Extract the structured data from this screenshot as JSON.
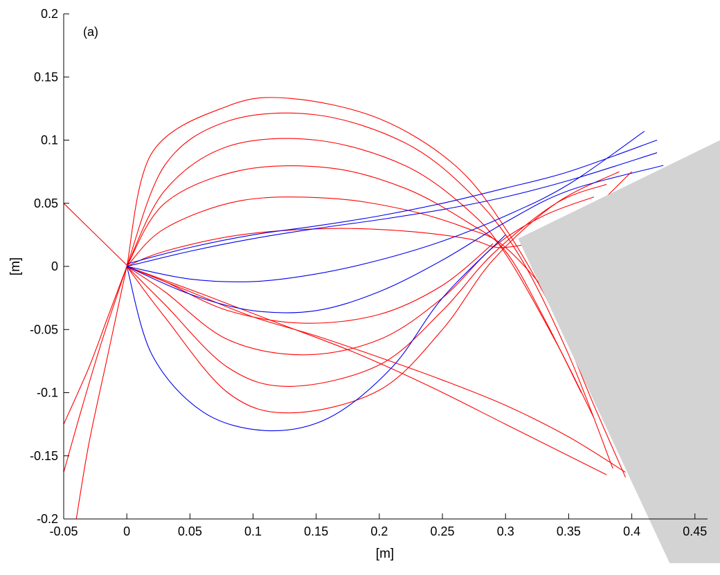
{
  "chart_data": {
    "type": "line",
    "panel_label": "(a)",
    "xlabel": "[m]",
    "ylabel": "[m]",
    "xlim": [
      -0.05,
      0.46
    ],
    "ylim": [
      -0.2,
      0.2
    ],
    "xticks": [
      -0.05,
      0,
      0.05,
      0.1,
      0.15,
      0.2,
      0.25,
      0.3,
      0.35,
      0.4,
      0.45
    ],
    "xtick_labels": [
      "-0.05",
      "0",
      "0.05",
      "0.1",
      "0.15",
      "0.2",
      "0.25",
      "0.3",
      "0.35",
      "0.4",
      "0.45"
    ],
    "yticks": [
      -0.2,
      -0.15,
      -0.1,
      -0.05,
      0,
      0.05,
      0.1,
      0.15,
      0.2
    ],
    "ytick_labels": [
      "-0.2",
      "-0.15",
      "-0.1",
      "-0.05",
      "0",
      "0.05",
      "0.1",
      "0.15",
      "0.2"
    ],
    "grid": false,
    "colors": {
      "red": "#ff0000",
      "blue": "#0000ee",
      "obstacle": "#d3d3d3"
    },
    "obstacle_polygon": [
      [
        0.31,
        0.022
      ],
      [
        0.47,
        0.1
      ],
      [
        0.47,
        -0.235
      ],
      [
        0.43,
        -0.235
      ]
    ],
    "series": [
      {
        "color": "red",
        "values": [
          [
            0,
            0
          ],
          [
            0.02,
            0.09
          ],
          [
            0.08,
            0.127
          ],
          [
            0.13,
            0.133
          ],
          [
            0.2,
            0.117
          ],
          [
            0.26,
            0.08
          ],
          [
            0.3,
            0.03
          ],
          [
            0.34,
            -0.04
          ],
          [
            0.37,
            -0.11
          ],
          [
            0.395,
            -0.167
          ]
        ]
      },
      {
        "color": "red",
        "values": [
          [
            0,
            0
          ],
          [
            0.03,
            0.08
          ],
          [
            0.08,
            0.115
          ],
          [
            0.15,
            0.12
          ],
          [
            0.22,
            0.098
          ],
          [
            0.27,
            0.06
          ],
          [
            0.31,
            0.01
          ],
          [
            0.35,
            -0.07
          ],
          [
            0.385,
            -0.16
          ]
        ]
      },
      {
        "color": "red",
        "values": [
          [
            0,
            0
          ],
          [
            0.03,
            0.06
          ],
          [
            0.08,
            0.095
          ],
          [
            0.15,
            0.1
          ],
          [
            0.22,
            0.08
          ],
          [
            0.27,
            0.045
          ],
          [
            0.3,
            0.01
          ],
          [
            0.34,
            -0.06
          ],
          [
            0.37,
            -0.12
          ]
        ]
      },
      {
        "color": "red",
        "values": [
          [
            0,
            0
          ],
          [
            0.03,
            0.05
          ],
          [
            0.09,
            0.076
          ],
          [
            0.16,
            0.078
          ],
          [
            0.22,
            0.062
          ],
          [
            0.27,
            0.035
          ],
          [
            0.3,
            0.012
          ],
          [
            0.33,
            -0.04
          ],
          [
            0.36,
            -0.1
          ]
        ]
      },
      {
        "color": "red",
        "values": [
          [
            0,
            0
          ],
          [
            0.03,
            0.03
          ],
          [
            0.09,
            0.052
          ],
          [
            0.16,
            0.054
          ],
          [
            0.22,
            0.045
          ],
          [
            0.27,
            0.03
          ],
          [
            0.3,
            0.015
          ],
          [
            0.34,
            -0.03
          ],
          [
            0.38,
            -0.09
          ]
        ]
      },
      {
        "color": "red",
        "values": [
          [
            0,
            0
          ],
          [
            0.03,
            0.012
          ],
          [
            0.09,
            0.025
          ],
          [
            0.16,
            0.03
          ],
          [
            0.22,
            0.028
          ],
          [
            0.27,
            0.022
          ],
          [
            0.3,
            0.015
          ],
          [
            0.35,
            0.03
          ],
          [
            0.4,
            0.075
          ]
        ]
      },
      {
        "color": "red",
        "values": [
          [
            0,
            0
          ],
          [
            0.03,
            -0.04
          ],
          [
            0.08,
            -0.1
          ],
          [
            0.13,
            -0.116
          ],
          [
            0.2,
            -0.098
          ],
          [
            0.25,
            -0.05
          ],
          [
            0.29,
            0.005
          ],
          [
            0.34,
            0.05
          ],
          [
            0.39,
            0.075
          ]
        ]
      },
      {
        "color": "red",
        "values": [
          [
            0,
            0
          ],
          [
            0.03,
            -0.03
          ],
          [
            0.08,
            -0.08
          ],
          [
            0.13,
            -0.095
          ],
          [
            0.2,
            -0.078
          ],
          [
            0.25,
            -0.035
          ],
          [
            0.29,
            0.01
          ],
          [
            0.34,
            0.05
          ],
          [
            0.38,
            0.065
          ]
        ]
      },
      {
        "color": "red",
        "values": [
          [
            0,
            0
          ],
          [
            0.03,
            -0.02
          ],
          [
            0.08,
            -0.058
          ],
          [
            0.14,
            -0.07
          ],
          [
            0.2,
            -0.058
          ],
          [
            0.25,
            -0.025
          ],
          [
            0.29,
            0.015
          ],
          [
            0.33,
            0.04
          ],
          [
            0.37,
            0.055
          ]
        ]
      },
      {
        "color": "red",
        "values": [
          [
            0,
            0
          ],
          [
            0.03,
            -0.012
          ],
          [
            0.08,
            -0.035
          ],
          [
            0.14,
            -0.045
          ],
          [
            0.2,
            -0.038
          ],
          [
            0.25,
            -0.015
          ],
          [
            0.29,
            0.018
          ]
        ]
      },
      {
        "color": "red",
        "values": [
          [
            0,
            0
          ],
          [
            0.05,
            -0.02
          ],
          [
            0.1,
            -0.04
          ],
          [
            0.15,
            -0.055
          ],
          [
            0.2,
            -0.072
          ],
          [
            0.25,
            -0.09
          ],
          [
            0.3,
            -0.11
          ],
          [
            0.35,
            -0.135
          ],
          [
            0.395,
            -0.163
          ]
        ]
      },
      {
        "color": "red",
        "values": [
          [
            0,
            0
          ],
          [
            0.06,
            -0.022
          ],
          [
            0.12,
            -0.045
          ],
          [
            0.18,
            -0.068
          ],
          [
            0.24,
            -0.095
          ],
          [
            0.3,
            -0.125
          ],
          [
            0.36,
            -0.155
          ],
          [
            0.38,
            -0.165
          ]
        ]
      },
      {
        "color": "red",
        "values": [
          [
            0,
            0
          ],
          [
            -0.015,
            -0.04
          ],
          [
            -0.03,
            -0.08
          ],
          [
            -0.05,
            -0.125
          ]
        ]
      },
      {
        "color": "red",
        "values": [
          [
            0,
            0
          ],
          [
            -0.02,
            -0.06
          ],
          [
            -0.035,
            -0.11
          ],
          [
            -0.05,
            -0.163
          ]
        ]
      },
      {
        "color": "red",
        "values": [
          [
            0,
            0
          ],
          [
            -0.015,
            -0.07
          ],
          [
            -0.03,
            -0.14
          ],
          [
            -0.04,
            -0.2
          ]
        ]
      },
      {
        "color": "red",
        "values": [
          [
            -0.05,
            0.05
          ],
          [
            0,
            0.001
          ]
        ]
      },
      {
        "color": "blue",
        "values": [
          [
            0,
            0
          ],
          [
            0.05,
            0.012
          ],
          [
            0.1,
            0.022
          ],
          [
            0.15,
            0.03
          ],
          [
            0.2,
            0.037
          ],
          [
            0.25,
            0.045
          ],
          [
            0.3,
            0.055
          ],
          [
            0.35,
            0.068
          ],
          [
            0.42,
            0.09
          ]
        ]
      },
      {
        "color": "blue",
        "values": [
          [
            0,
            0
          ],
          [
            0.05,
            -0.01
          ],
          [
            0.1,
            -0.012
          ],
          [
            0.15,
            -0.006
          ],
          [
            0.2,
            0.005
          ],
          [
            0.25,
            0.02
          ],
          [
            0.3,
            0.04
          ],
          [
            0.35,
            0.065
          ],
          [
            0.41,
            0.107
          ]
        ]
      },
      {
        "color": "blue",
        "values": [
          [
            0,
            0
          ],
          [
            0.05,
            -0.022
          ],
          [
            0.1,
            -0.035
          ],
          [
            0.15,
            -0.035
          ],
          [
            0.2,
            -0.02
          ],
          [
            0.25,
            0.005
          ],
          [
            0.3,
            0.035
          ],
          [
            0.35,
            0.06
          ],
          [
            0.425,
            0.08
          ]
        ]
      },
      {
        "color": "blue",
        "values": [
          [
            0,
            0.002
          ],
          [
            0.05,
            0.015
          ],
          [
            0.1,
            0.025
          ],
          [
            0.15,
            0.032
          ],
          [
            0.2,
            0.04
          ],
          [
            0.25,
            0.05
          ],
          [
            0.3,
            0.062
          ],
          [
            0.35,
            0.075
          ],
          [
            0.42,
            0.1
          ]
        ]
      },
      {
        "color": "blue",
        "values": [
          [
            0,
            0
          ],
          [
            0.02,
            -0.07
          ],
          [
            0.06,
            -0.115
          ],
          [
            0.11,
            -0.13
          ],
          [
            0.16,
            -0.12
          ],
          [
            0.21,
            -0.08
          ],
          [
            0.25,
            -0.025
          ],
          [
            0.3,
            0.025
          ]
        ]
      }
    ]
  }
}
